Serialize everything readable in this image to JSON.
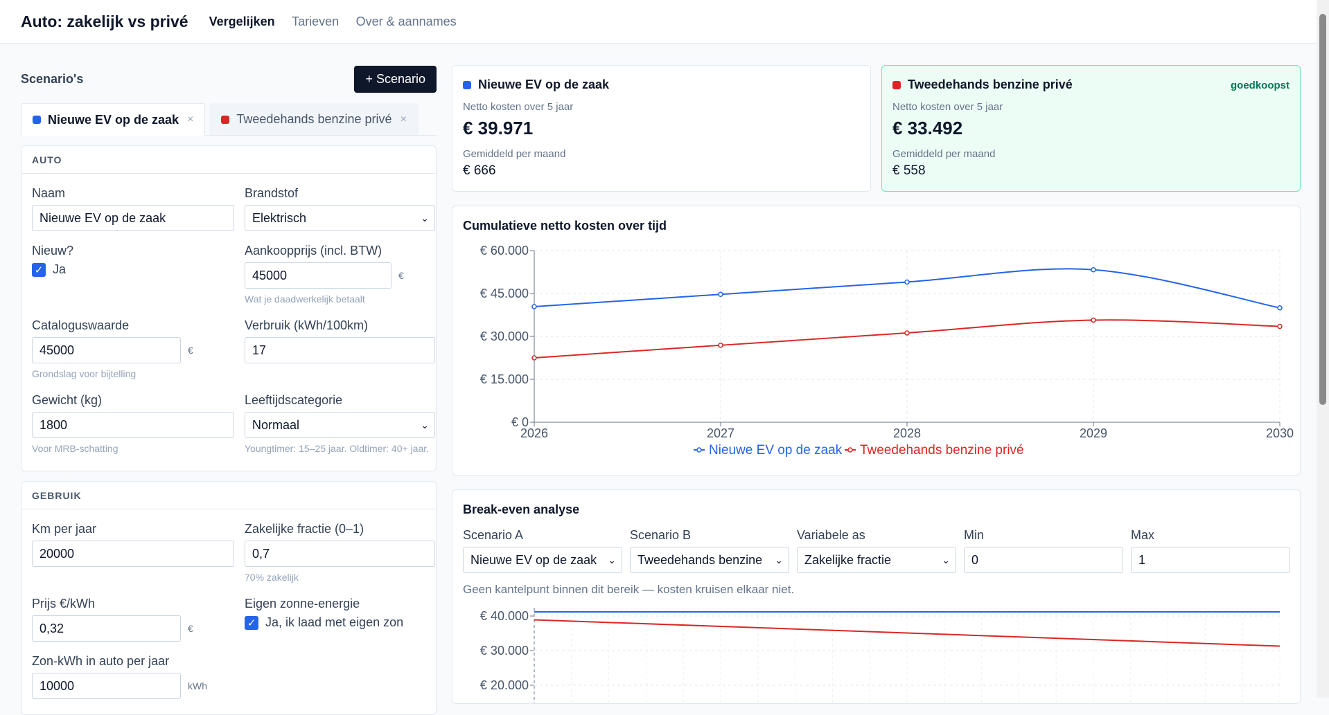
{
  "app": {
    "title": "Auto: zakelijk vs privé",
    "nav": [
      {
        "label": "Vergelijken",
        "active": true
      },
      {
        "label": "Tarieven",
        "active": false
      },
      {
        "label": "Over & aannames",
        "active": false
      }
    ]
  },
  "scenarios": {
    "title": "Scenario's",
    "new_button": "+ Scenario",
    "tabs": [
      {
        "label": "Nieuwe EV op de zaak",
        "color": "#2563eb",
        "active": true,
        "close": "×"
      },
      {
        "label": "Tweedehands benzine privé",
        "color": "#dc2626",
        "active": false,
        "close": "×"
      }
    ]
  },
  "auto": {
    "section": "AUTO",
    "naam": {
      "label": "Naam",
      "value": "Nieuwe EV op de zaak"
    },
    "brandstof": {
      "label": "Brandstof",
      "value": "Elektrisch"
    },
    "nieuw": {
      "label": "Nieuw?",
      "check_label": "Ja",
      "checked": true
    },
    "aankoopprijs": {
      "label": "Aankoopprijs (incl. BTW)",
      "value": "45000",
      "unit": "€",
      "help": "Wat je daadwerkelijk betaalt"
    },
    "catalogus": {
      "label": "Cataloguswaarde",
      "value": "45000",
      "unit": "€",
      "help": "Grondslag voor bijtelling"
    },
    "verbruik": {
      "label": "Verbruik (kWh/100km)",
      "value": "17"
    },
    "gewicht": {
      "label": "Gewicht (kg)",
      "value": "1800",
      "help": "Voor MRB-schatting"
    },
    "leeftijd": {
      "label": "Leeftijdscategorie",
      "value": "Normaal",
      "help": "Youngtimer: 15–25 jaar. Oldtimer: 40+ jaar."
    }
  },
  "gebruik": {
    "section": "GEBRUIK",
    "km": {
      "label": "Km per jaar",
      "value": "20000"
    },
    "fractie": {
      "label": "Zakelijke fractie (0–1)",
      "value": "0,7",
      "help": "70% zakelijk"
    },
    "prijs": {
      "label": "Prijs €/kWh",
      "value": "0,32",
      "unit": "€"
    },
    "zon": {
      "label": "Eigen zonne-energie",
      "check_label": "Ja, ik laad met eigen zon",
      "checked": true
    },
    "zonkwh": {
      "label": "Zon-kWh in auto per jaar",
      "value": "10000",
      "unit": "kWh"
    }
  },
  "summary": [
    {
      "name": "Nieuwe EV op de zaak",
      "color": "#2563eb",
      "net_label": "Netto kosten over 5 jaar",
      "net": "€ 39.971",
      "month_label": "Gemiddeld per maand",
      "month": "€ 666",
      "badge": ""
    },
    {
      "name": "Tweedehands benzine privé",
      "color": "#dc2626",
      "net_label": "Netto kosten over 5 jaar",
      "net": "€ 33.492",
      "month_label": "Gemiddeld per maand",
      "month": "€ 558",
      "badge": "goedkoopst"
    }
  ],
  "chart_data": [
    {
      "type": "line",
      "title": "Cumulatieve netto kosten over tijd",
      "x": [
        2026,
        2027,
        2028,
        2029,
        2030
      ],
      "ylim": [
        0,
        60000
      ],
      "yticks": [
        "€ 0",
        "€ 15.000",
        "€ 30.000",
        "€ 45.000",
        "€ 60.000"
      ],
      "series": [
        {
          "name": "Nieuwe EV op de zaak",
          "color": "#2563eb",
          "values": [
            40400,
            44700,
            49000,
            53300,
            39971
          ]
        },
        {
          "name": "Tweedehands benzine privé",
          "color": "#dc2626",
          "values": [
            22500,
            26900,
            31200,
            35700,
            33492
          ]
        }
      ],
      "grid": true,
      "legend": "bottom"
    },
    {
      "type": "line",
      "title": "Break-even analyse",
      "x": [
        0,
        1
      ],
      "yticks": [
        "€ 20.000",
        "€ 30.000",
        "€ 40.000"
      ],
      "series": [
        {
          "name": "Nieuwe EV op de zaak",
          "color": "#2563eb",
          "values": [
            41200,
            41200
          ]
        },
        {
          "name": "Tweedehands benzine privé",
          "color": "#dc2626",
          "values": [
            38900,
            31300
          ]
        }
      ],
      "grid": true
    }
  ],
  "breakeven": {
    "title": "Break-even analyse",
    "scenario_a": {
      "label": "Scenario A",
      "value": "Nieuwe EV op de zaak"
    },
    "scenario_b": {
      "label": "Scenario B",
      "value": "Tweedehands benzine privé"
    },
    "variabele": {
      "label": "Variabele as",
      "value": "Zakelijke fractie"
    },
    "min": {
      "label": "Min",
      "value": "0"
    },
    "max": {
      "label": "Max",
      "value": "1"
    },
    "note": "Geen kantelpunt binnen dit bereik — kosten kruisen elkaar niet."
  }
}
